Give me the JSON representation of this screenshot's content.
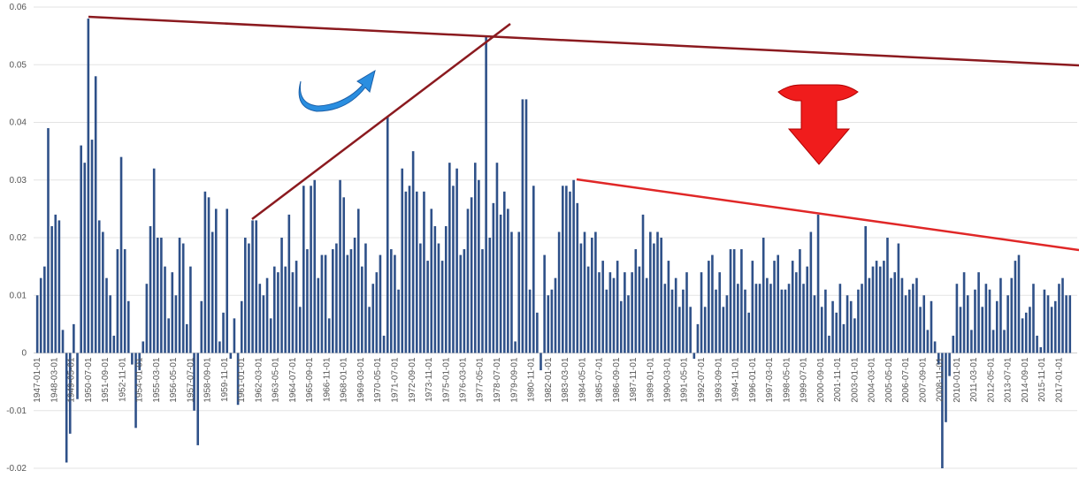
{
  "chart_data": {
    "type": "bar",
    "color": "#2f5189",
    "grid": true,
    "ylim": [
      -0.02,
      0.06
    ],
    "yticks": [
      -0.02,
      -0.01,
      0,
      0.01,
      0.02,
      0.03,
      0.04,
      0.05,
      0.06
    ],
    "xlim": [
      "1946-10-01",
      "2018-04-01"
    ],
    "xticks": [
      "1947-01-01",
      "1948-03-01",
      "1949-05-01",
      "1950-07-01",
      "1951-09-01",
      "1952-11-01",
      "1954-01-01",
      "1955-03-01",
      "1956-05-01",
      "1957-07-01",
      "1958-09-01",
      "1959-11-01",
      "1961-01-01",
      "1962-03-01",
      "1963-05-01",
      "1964-07-01",
      "1965-09-01",
      "1966-11-01",
      "1968-01-01",
      "1969-03-01",
      "1970-05-01",
      "1971-07-01",
      "1972-09-01",
      "1973-11-01",
      "1975-01-01",
      "1976-03-01",
      "1977-05-01",
      "1978-07-01",
      "1979-09-01",
      "1980-11-01",
      "1982-01-01",
      "1983-03-01",
      "1984-05-01",
      "1985-07-01",
      "1986-09-01",
      "1987-11-01",
      "1989-01-01",
      "1990-03-01",
      "1991-05-01",
      "1992-07-01",
      "1993-09-01",
      "1994-11-01",
      "1996-01-01",
      "1997-03-01",
      "1998-05-01",
      "1999-07-01",
      "2000-09-01",
      "2001-11-01",
      "2003-01-01",
      "2004-03-01",
      "2005-05-01",
      "2006-07-01",
      "2007-09-01",
      "2008-11-01",
      "2010-01-01",
      "2011-03-01",
      "2012-05-01",
      "2013-07-01",
      "2014-09-01",
      "2015-11-01",
      "2017-01-01"
    ],
    "x": [
      "1947-01-01",
      "1947-04-01",
      "1947-07-01",
      "1947-10-01",
      "1948-01-01",
      "1948-04-01",
      "1948-07-01",
      "1948-10-01",
      "1949-01-01",
      "1949-04-01",
      "1949-07-01",
      "1949-10-01",
      "1950-01-01",
      "1950-04-01",
      "1950-07-01",
      "1950-10-01",
      "1951-01-01",
      "1951-04-01",
      "1951-07-01",
      "1951-10-01",
      "1952-01-01",
      "1952-04-01",
      "1952-07-01",
      "1952-10-01",
      "1953-01-01",
      "1953-04-01",
      "1953-07-01",
      "1953-10-01",
      "1954-01-01",
      "1954-04-01",
      "1954-07-01",
      "1954-10-01",
      "1955-01-01",
      "1955-04-01",
      "1955-07-01",
      "1955-10-01",
      "1956-01-01",
      "1956-04-01",
      "1956-07-01",
      "1956-10-01",
      "1957-01-01",
      "1957-04-01",
      "1957-07-01",
      "1957-10-01",
      "1958-01-01",
      "1958-04-01",
      "1958-07-01",
      "1958-10-01",
      "1959-01-01",
      "1959-04-01",
      "1959-07-01",
      "1959-10-01",
      "1960-01-01",
      "1960-04-01",
      "1960-07-01",
      "1960-10-01",
      "1961-01-01",
      "1961-04-01",
      "1961-07-01",
      "1961-10-01",
      "1962-01-01",
      "1962-04-01",
      "1962-07-01",
      "1962-10-01",
      "1963-01-01",
      "1963-04-01",
      "1963-07-01",
      "1963-10-01",
      "1964-01-01",
      "1964-04-01",
      "1964-07-01",
      "1964-10-01",
      "1965-01-01",
      "1965-04-01",
      "1965-07-01",
      "1965-10-01",
      "1966-01-01",
      "1966-04-01",
      "1966-07-01",
      "1966-10-01",
      "1967-01-01",
      "1967-04-01",
      "1967-07-01",
      "1967-10-01",
      "1968-01-01",
      "1968-04-01",
      "1968-07-01",
      "1968-10-01",
      "1969-01-01",
      "1969-04-01",
      "1969-07-01",
      "1969-10-01",
      "1970-01-01",
      "1970-04-01",
      "1970-07-01",
      "1970-10-01",
      "1971-01-01",
      "1971-04-01",
      "1971-07-01",
      "1971-10-01",
      "1972-01-01",
      "1972-04-01",
      "1972-07-01",
      "1972-10-01",
      "1973-01-01",
      "1973-04-01",
      "1973-07-01",
      "1973-10-01",
      "1974-01-01",
      "1974-04-01",
      "1974-07-01",
      "1974-10-01",
      "1975-01-01",
      "1975-04-01",
      "1975-07-01",
      "1975-10-01",
      "1976-01-01",
      "1976-04-01",
      "1976-07-01",
      "1976-10-01",
      "1977-01-01",
      "1977-04-01",
      "1977-07-01",
      "1977-10-01",
      "1978-01-01",
      "1978-04-01",
      "1978-07-01",
      "1978-10-01",
      "1979-01-01",
      "1979-04-01",
      "1979-07-01",
      "1979-10-01",
      "1980-01-01",
      "1980-04-01",
      "1980-07-01",
      "1980-10-01",
      "1981-01-01",
      "1981-04-01",
      "1981-07-01",
      "1981-10-01",
      "1982-01-01",
      "1982-04-01",
      "1982-07-01",
      "1982-10-01",
      "1983-01-01",
      "1983-04-01",
      "1983-07-01",
      "1983-10-01",
      "1984-01-01",
      "1984-04-01",
      "1984-07-01",
      "1984-10-01",
      "1985-01-01",
      "1985-04-01",
      "1985-07-01",
      "1985-10-01",
      "1986-01-01",
      "1986-04-01",
      "1986-07-01",
      "1986-10-01",
      "1987-01-01",
      "1987-04-01",
      "1987-07-01",
      "1987-10-01",
      "1988-01-01",
      "1988-04-01",
      "1988-07-01",
      "1988-10-01",
      "1989-01-01",
      "1989-04-01",
      "1989-07-01",
      "1989-10-01",
      "1990-01-01",
      "1990-04-01",
      "1990-07-01",
      "1990-10-01",
      "1991-01-01",
      "1991-04-01",
      "1991-07-01",
      "1991-10-01",
      "1992-01-01",
      "1992-04-01",
      "1992-07-01",
      "1992-10-01",
      "1993-01-01",
      "1993-04-01",
      "1993-07-01",
      "1993-10-01",
      "1994-01-01",
      "1994-04-01",
      "1994-07-01",
      "1994-10-01",
      "1995-01-01",
      "1995-04-01",
      "1995-07-01",
      "1995-10-01",
      "1996-01-01",
      "1996-04-01",
      "1996-07-01",
      "1996-10-01",
      "1997-01-01",
      "1997-04-01",
      "1997-07-01",
      "1997-10-01",
      "1998-01-01",
      "1998-04-01",
      "1998-07-01",
      "1998-10-01",
      "1999-01-01",
      "1999-04-01",
      "1999-07-01",
      "1999-10-01",
      "2000-01-01",
      "2000-04-01",
      "2000-07-01",
      "2000-10-01",
      "2001-01-01",
      "2001-04-01",
      "2001-07-01",
      "2001-10-01",
      "2002-01-01",
      "2002-04-01",
      "2002-07-01",
      "2002-10-01",
      "2003-01-01",
      "2003-04-01",
      "2003-07-01",
      "2003-10-01",
      "2004-01-01",
      "2004-04-01",
      "2004-07-01",
      "2004-10-01",
      "2005-01-01",
      "2005-04-01",
      "2005-07-01",
      "2005-10-01",
      "2006-01-01",
      "2006-04-01",
      "2006-07-01",
      "2006-10-01",
      "2007-01-01",
      "2007-04-01",
      "2007-07-01",
      "2007-10-01",
      "2008-01-01",
      "2008-04-01",
      "2008-07-01",
      "2008-10-01",
      "2009-01-01",
      "2009-04-01",
      "2009-07-01",
      "2009-10-01",
      "2010-01-01",
      "2010-04-01",
      "2010-07-01",
      "2010-10-01",
      "2011-01-01",
      "2011-04-01",
      "2011-07-01",
      "2011-10-01",
      "2012-01-01",
      "2012-04-01",
      "2012-07-01",
      "2012-10-01",
      "2013-01-01",
      "2013-04-01",
      "2013-07-01",
      "2013-10-01",
      "2014-01-01",
      "2014-04-01",
      "2014-07-01",
      "2014-10-01",
      "2015-01-01",
      "2015-04-01",
      "2015-07-01",
      "2015-10-01",
      "2016-01-01",
      "2016-04-01",
      "2016-07-01",
      "2016-10-01",
      "2017-01-01",
      "2017-04-01",
      "2017-07-01",
      "2017-10-01"
    ],
    "values": [
      0.01,
      0.013,
      0.015,
      0.039,
      0.022,
      0.024,
      0.023,
      0.004,
      -0.019,
      -0.014,
      0.005,
      -0.008,
      0.036,
      0.033,
      0.058,
      0.037,
      0.048,
      0.023,
      0.021,
      0.013,
      0.01,
      0.003,
      0.018,
      0.034,
      0.018,
      0.009,
      -0.002,
      -0.013,
      -0.003,
      0.002,
      0.012,
      0.022,
      0.032,
      0.02,
      0.02,
      0.015,
      0.006,
      0.014,
      0.01,
      0.02,
      0.019,
      0.005,
      0.015,
      -0.01,
      -0.016,
      0.009,
      0.028,
      0.027,
      0.021,
      0.025,
      0.002,
      0.007,
      0.025,
      -0.001,
      0.006,
      -0.009,
      0.009,
      0.02,
      0.019,
      0.023,
      0.023,
      0.012,
      0.01,
      0.013,
      0.006,
      0.015,
      0.014,
      0.02,
      0.015,
      0.024,
      0.014,
      0.016,
      0.008,
      0.029,
      0.018,
      0.029,
      0.03,
      0.013,
      0.017,
      0.017,
      0.006,
      0.018,
      0.019,
      0.03,
      0.027,
      0.017,
      0.018,
      0.02,
      0.025,
      0.015,
      0.019,
      0.008,
      0.012,
      0.014,
      0.017,
      0.003,
      0.041,
      0.018,
      0.017,
      0.011,
      0.032,
      0.028,
      0.029,
      0.035,
      0.028,
      0.019,
      0.028,
      0.016,
      0.025,
      0.022,
      0.019,
      0.016,
      0.022,
      0.033,
      0.029,
      0.032,
      0.017,
      0.018,
      0.025,
      0.027,
      0.033,
      0.03,
      0.018,
      0.055,
      0.02,
      0.026,
      0.033,
      0.024,
      0.028,
      0.025,
      0.021,
      0.002,
      0.021,
      0.044,
      0.044,
      0.011,
      0.029,
      0.007,
      -0.003,
      0.017,
      0.01,
      0.011,
      0.013,
      0.021,
      0.029,
      0.029,
      0.028,
      0.03,
      0.026,
      0.019,
      0.021,
      0.015,
      0.02,
      0.021,
      0.014,
      0.016,
      0.011,
      0.014,
      0.013,
      0.016,
      0.009,
      0.014,
      0.01,
      0.014,
      0.018,
      0.015,
      0.024,
      0.013,
      0.021,
      0.019,
      0.021,
      0.02,
      0.012,
      0.016,
      0.011,
      0.013,
      0.008,
      0.011,
      0.014,
      0.008,
      -0.001,
      0.005,
      0.014,
      0.008,
      0.016,
      0.017,
      0.011,
      0.014,
      0.008,
      0.01,
      0.018,
      0.018,
      0.012,
      0.018,
      0.011,
      0.007,
      0.016,
      0.012,
      0.012,
      0.02,
      0.013,
      0.012,
      0.016,
      0.017,
      0.011,
      0.011,
      0.012,
      0.016,
      0.014,
      0.018,
      0.012,
      0.015,
      0.021,
      0.01,
      0.024,
      0.008,
      0.011,
      0.003,
      0.009,
      0.007,
      0.012,
      0.005,
      0.01,
      0.009,
      0.006,
      0.011,
      0.012,
      0.022,
      0.013,
      0.015,
      0.016,
      0.015,
      0.016,
      0.02,
      0.013,
      0.014,
      0.019,
      0.013,
      0.01,
      0.011,
      0.012,
      0.013,
      0.008,
      0.01,
      0.004,
      0.009,
      0.002,
      -0.002,
      -0.02,
      -0.012,
      -0.004,
      0.003,
      0.012,
      0.008,
      0.014,
      0.01,
      0.004,
      0.011,
      0.014,
      0.008,
      0.012,
      0.011,
      0.004,
      0.009,
      0.013,
      0.004,
      0.01,
      0.013,
      0.016,
      0.017,
      0.006,
      0.007,
      0.008,
      0.012,
      0.003,
      0.001,
      0.011,
      0.01,
      0.008,
      0.009,
      0.012,
      0.013,
      0.01,
      0.01
    ]
  }
}
